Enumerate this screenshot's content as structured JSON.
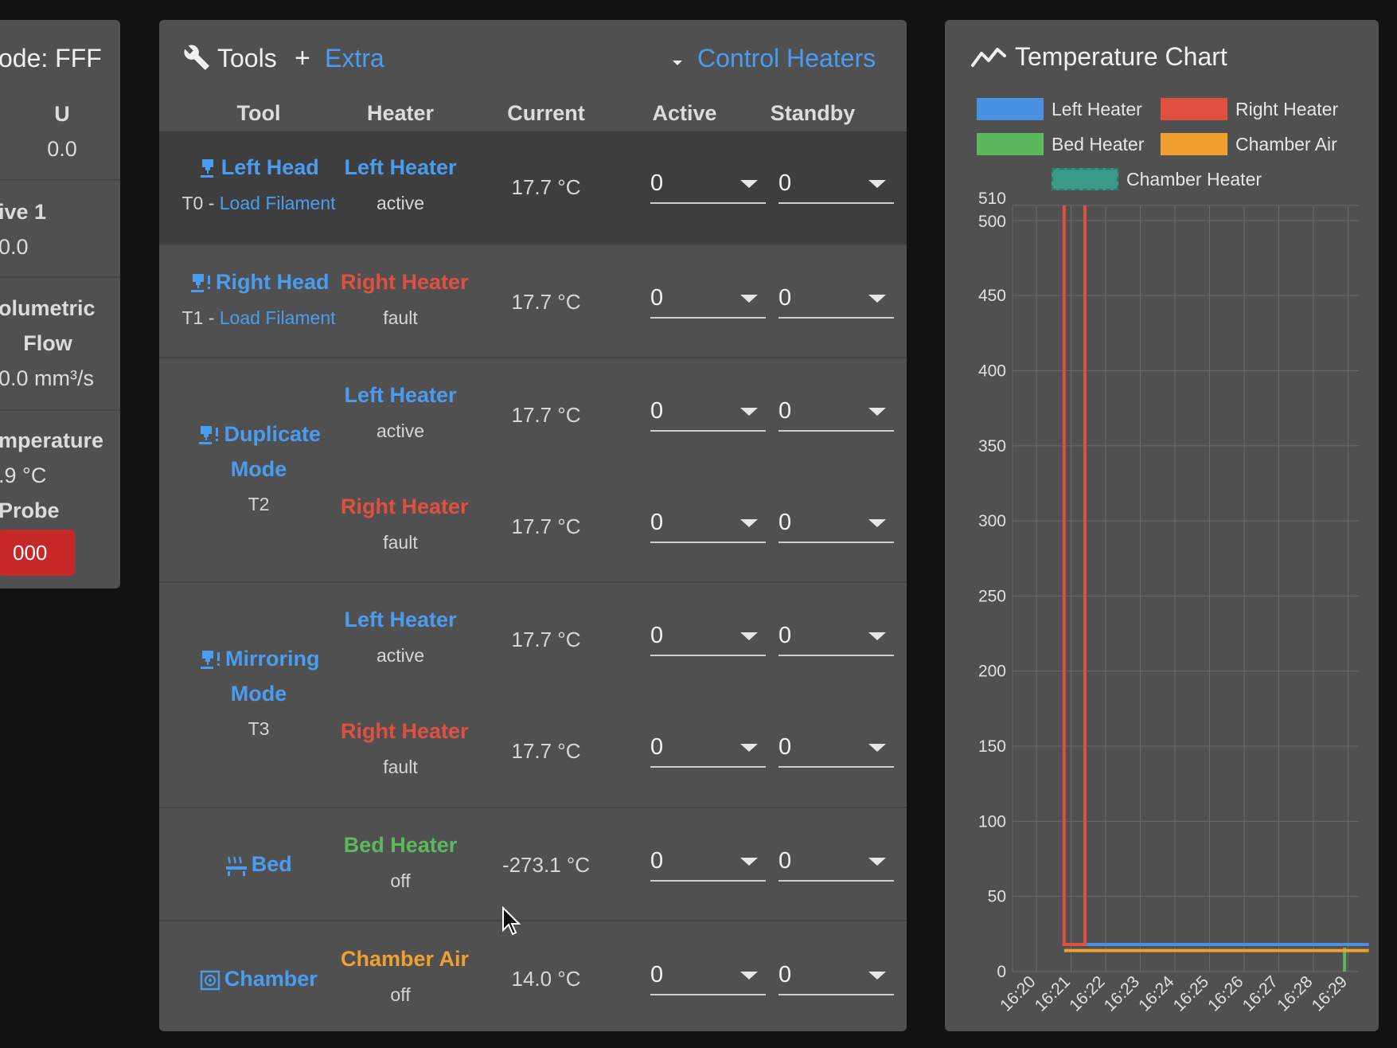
{
  "status_panel": {
    "mode": "ode: FFF",
    "axis_label": "U",
    "axis_value": "0.0",
    "drive_label": "ive 1",
    "drive_value": "0.0",
    "vol_label_1": "olumetric",
    "vol_label_2": "Flow",
    "vol_value": "0.0 mm³/s",
    "temp_label": "mperature",
    "temp_value": ".9 °C",
    "probe_label": "Probe",
    "probe_value": "000"
  },
  "tools_panel": {
    "title": "Tools",
    "extra_label": "Extra",
    "control_heaters_label": "Control Heaters",
    "columns": [
      "Tool",
      "Heater",
      "Current",
      "Active",
      "Standby"
    ],
    "rows": [
      {
        "tool": "Left Head",
        "sub_prefix": "T0 - ",
        "sub_link": "Load Filament",
        "heaters": [
          {
            "name": "Left Heater",
            "state": "active",
            "current": "17.7 °C",
            "active": "0",
            "standby": "0"
          }
        ]
      },
      {
        "tool": "Right Head",
        "sub_prefix": "T1 - ",
        "sub_link": "Load Filament",
        "heaters": [
          {
            "name": "Right Heater",
            "state": "fault",
            "current": "17.7 °C",
            "active": "0",
            "standby": "0"
          }
        ]
      },
      {
        "tool_line1": "Duplicate",
        "tool_line2": "Mode",
        "sub": "T2",
        "heaters": [
          {
            "name": "Left Heater",
            "state": "active",
            "current": "17.7 °C",
            "active": "0",
            "standby": "0"
          },
          {
            "name": "Right Heater",
            "state": "fault",
            "current": "17.7 °C",
            "active": "0",
            "standby": "0"
          }
        ]
      },
      {
        "tool_line1": "Mirroring",
        "tool_line2": "Mode",
        "sub": "T3",
        "heaters": [
          {
            "name": "Left Heater",
            "state": "active",
            "current": "17.7 °C",
            "active": "0",
            "standby": "0"
          },
          {
            "name": "Right Heater",
            "state": "fault",
            "current": "17.7 °C",
            "active": "0",
            "standby": "0"
          }
        ]
      },
      {
        "tool": "Bed",
        "heaters": [
          {
            "name": "Bed Heater",
            "state": "off",
            "current": "-273.1 °C",
            "active": "0",
            "standby": "0"
          }
        ]
      },
      {
        "tool": "Chamber",
        "heaters": [
          {
            "name": "Chamber Air",
            "state": "off",
            "current": "14.0 °C",
            "active": "0",
            "standby": "0"
          }
        ]
      }
    ]
  },
  "icons": {
    "tools": "wrench-icon",
    "extra": "plus-icon",
    "control": "caret-down-icon",
    "nozzle": "nozzle-icon",
    "bed": "heated-bed-icon",
    "chamber": "chamber-icon",
    "chart": "chart-line-icon"
  },
  "colors": {
    "link": "#4a9cf0",
    "left": "#4a90e2",
    "right": "#e05040",
    "bed": "#5cb85c",
    "chamber_air": "#f0a030",
    "chamber_heater": "#3a9a8a",
    "fault_badge": "#c62828"
  },
  "chart_data": {
    "type": "line",
    "title": "Temperature Chart",
    "ylim": [
      0,
      510
    ],
    "y_ticks": [
      0,
      50,
      100,
      150,
      200,
      250,
      300,
      350,
      400,
      450,
      500,
      510
    ],
    "x_ticks": [
      "16:20",
      "16:21",
      "16:22",
      "16:23",
      "16:24",
      "16:25",
      "16:26",
      "16:27",
      "16:28",
      "16:29"
    ],
    "grid": true,
    "legend_position": "top",
    "series": [
      {
        "name": "Left Heater",
        "color": "#4a90e2",
        "points": [
          [
            "16:20.8",
            18
          ],
          [
            "16:29.6",
            18
          ]
        ]
      },
      {
        "name": "Right Heater",
        "color": "#e05040",
        "points": [
          [
            "16:20.8",
            510
          ],
          [
            "16:20.8",
            18
          ],
          [
            "16:21.4",
            18
          ],
          [
            "16:21.4",
            510
          ]
        ]
      },
      {
        "name": "Bed Heater",
        "color": "#5cb85c",
        "points": [
          [
            "16:28.9",
            16
          ],
          [
            "16:28.9",
            0
          ]
        ]
      },
      {
        "name": "Chamber Air",
        "color": "#f0a030",
        "points": [
          [
            "16:20.8",
            14
          ],
          [
            "16:29.6",
            14
          ]
        ]
      },
      {
        "name": "Chamber Heater",
        "color": "#3a9a8a",
        "points": []
      }
    ]
  }
}
